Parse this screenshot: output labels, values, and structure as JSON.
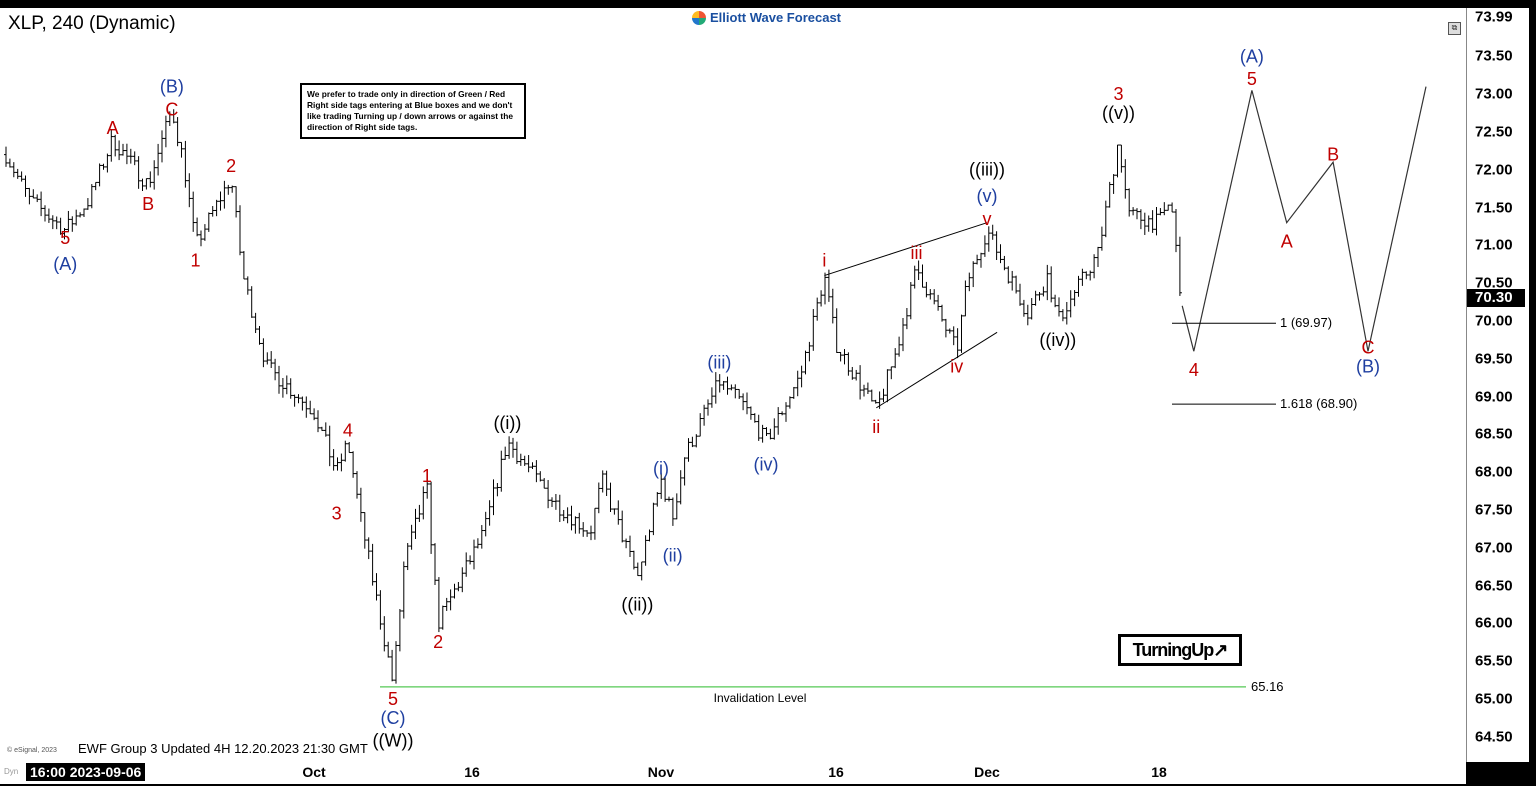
{
  "header": {
    "title": "XLP, 240 (Dynamic)",
    "brand": "Elliott Wave Forecast",
    "note": "We prefer to trade only in direction of Green / Red Right side tags entering at Blue boxes and we don't like trading Turning up / down arrows or against the direction of Right side tags.",
    "turning_up": "TurningUp",
    "turning_up_arrow": "↗",
    "footer": "EWF Group 3 Updated 4H 12.20.2023 21:30 GMT",
    "esignal": "© eSignal, 2023",
    "dyn": "Dyn",
    "corner_icon": "window-restore-icon"
  },
  "chart_data": {
    "type": "ohlc",
    "symbol": "XLP",
    "timeframe": "240",
    "ylim": [
      64.0,
      73.99
    ],
    "yticks": [
      "73.50",
      "73.00",
      "72.50",
      "72.00",
      "71.50",
      "71.00",
      "70.50",
      "70.00",
      "69.50",
      "69.00",
      "68.50",
      "68.00",
      "67.50",
      "67.00",
      "66.50",
      "66.00",
      "65.50",
      "65.00",
      "64.50",
      "64.00"
    ],
    "ytop_label": "73.99",
    "current_price": "70.30",
    "x_cursor_label": "16:00 2023-09-06",
    "xticks": [
      "Oct",
      "16",
      "Nov",
      "16",
      "Dec",
      "18"
    ],
    "price_path": [
      [
        "2023-09-06",
        72.2
      ],
      [
        "2023-09-08",
        71.6
      ],
      [
        "2023-09-11",
        71.2
      ],
      [
        "2023-09-13",
        71.6
      ],
      [
        "2023-09-15",
        72.4
      ],
      [
        "2023-09-18",
        71.8
      ],
      [
        "2023-09-20",
        72.8
      ],
      [
        "2023-09-21",
        72.1
      ],
      [
        "2023-09-22",
        71.0
      ],
      [
        "2023-09-25",
        71.9
      ],
      [
        "2023-09-26",
        70.6
      ],
      [
        "2023-09-28",
        69.4
      ],
      [
        "2023-10-02",
        68.8
      ],
      [
        "2023-10-04",
        68.0
      ],
      [
        "2023-10-05",
        68.4
      ],
      [
        "2023-10-06",
        67.5
      ],
      [
        "2023-10-09",
        65.2
      ],
      [
        "2023-10-10",
        66.8
      ],
      [
        "2023-10-12",
        67.8
      ],
      [
        "2023-10-13",
        66.0
      ],
      [
        "2023-10-17",
        67.2
      ],
      [
        "2023-10-19",
        68.4
      ],
      [
        "2023-10-23",
        67.6
      ],
      [
        "2023-10-26",
        67.2
      ],
      [
        "2023-10-27",
        67.9
      ],
      [
        "2023-10-30",
        66.6
      ],
      [
        "2023-11-01",
        67.9
      ],
      [
        "2023-11-02",
        67.4
      ],
      [
        "2023-11-03",
        68.2
      ],
      [
        "2023-11-06",
        69.2
      ],
      [
        "2023-11-08",
        68.9
      ],
      [
        "2023-11-10",
        68.4
      ],
      [
        "2023-11-13",
        69.3
      ],
      [
        "2023-11-15",
        70.6
      ],
      [
        "2023-11-16",
        69.7
      ],
      [
        "2023-11-20",
        68.8
      ],
      [
        "2023-11-22",
        69.6
      ],
      [
        "2023-11-24",
        70.7
      ],
      [
        "2023-11-28",
        69.6
      ],
      [
        "2023-11-29",
        70.5
      ],
      [
        "2023-12-01",
        71.2
      ],
      [
        "2023-12-05",
        70.1
      ],
      [
        "2023-12-07",
        70.6
      ],
      [
        "2023-12-08",
        70.0
      ],
      [
        "2023-12-12",
        70.9
      ],
      [
        "2023-12-14",
        72.4
      ],
      [
        "2023-12-15",
        71.4
      ],
      [
        "2023-12-18",
        71.3
      ],
      [
        "2023-12-19",
        71.6
      ],
      [
        "2023-12-20",
        70.2
      ]
    ],
    "projection_path": [
      [
        "2023-12-20",
        70.2
      ],
      [
        "2023-12-21",
        69.6
      ],
      [
        "2023-12-26",
        73.05
      ],
      [
        "2023-12-29",
        71.3
      ],
      [
        "2024-01-02",
        72.1
      ],
      [
        "2024-01-05",
        69.6
      ],
      [
        "2024-01-10",
        73.1
      ]
    ],
    "wedge_lines": [
      [
        [
          "2023-11-15",
          70.6
        ],
        [
          "2023-12-01",
          71.3
        ]
      ],
      [
        [
          "2023-11-20",
          68.85
        ],
        [
          "2023-12-02",
          69.85
        ]
      ]
    ],
    "levels": [
      {
        "label": "1 (69.97)",
        "value": 69.97
      },
      {
        "label": "1.618 (68.90)",
        "value": 68.9
      },
      {
        "label": "65.16",
        "value": 65.16,
        "caption": "Invalidation Level"
      }
    ],
    "wave_labels": [
      {
        "text": "5",
        "color": "#c00000",
        "date": "2023-09-11",
        "price": 71.1
      },
      {
        "text": "(A)",
        "color": "#1f3fa0",
        "date": "2023-09-11",
        "price": 70.75
      },
      {
        "text": "A",
        "color": "#c00000",
        "date": "2023-09-15",
        "price": 72.55
      },
      {
        "text": "B",
        "color": "#c00000",
        "date": "2023-09-18",
        "price": 71.55
      },
      {
        "text": "(B)",
        "color": "#1f3fa0",
        "date": "2023-09-20",
        "price": 73.1
      },
      {
        "text": "C",
        "color": "#c00000",
        "date": "2023-09-20",
        "price": 72.8
      },
      {
        "text": "2",
        "color": "#c00000",
        "date": "2023-09-25",
        "price": 72.05
      },
      {
        "text": "1",
        "color": "#c00000",
        "date": "2023-09-22",
        "price": 70.8
      },
      {
        "text": "4",
        "color": "#c00000",
        "date": "2023-10-05",
        "price": 68.55
      },
      {
        "text": "3",
        "color": "#c00000",
        "date": "2023-10-04",
        "price": 67.45
      },
      {
        "text": "1",
        "color": "#c00000",
        "date": "2023-10-12",
        "price": 67.95
      },
      {
        "text": "2",
        "color": "#c00000",
        "date": "2023-10-13",
        "price": 65.75
      },
      {
        "text": "5",
        "color": "#c00000",
        "date": "2023-10-09",
        "price": 65.0
      },
      {
        "text": "(C)",
        "color": "#1f3fa0",
        "date": "2023-10-09",
        "price": 64.75
      },
      {
        "text": "((W))",
        "color": "#000000",
        "date": "2023-10-09",
        "price": 64.45
      },
      {
        "text": "((i))",
        "color": "#000000",
        "date": "2023-10-19",
        "price": 68.65
      },
      {
        "text": "((ii))",
        "color": "#000000",
        "date": "2023-10-30",
        "price": 66.25
      },
      {
        "text": "(i)",
        "color": "#1f3fa0",
        "date": "2023-11-01",
        "price": 68.05
      },
      {
        "text": "(ii)",
        "color": "#1f3fa0",
        "date": "2023-11-02",
        "price": 66.9
      },
      {
        "text": "(iii)",
        "color": "#1f3fa0",
        "date": "2023-11-06",
        "price": 69.45
      },
      {
        "text": "(iv)",
        "color": "#1f3fa0",
        "date": "2023-11-10",
        "price": 68.1
      },
      {
        "text": "i",
        "color": "#c00000",
        "date": "2023-11-15",
        "price": 70.8
      },
      {
        "text": "ii",
        "color": "#c00000",
        "date": "2023-11-20",
        "price": 68.6
      },
      {
        "text": "iii",
        "color": "#c00000",
        "date": "2023-11-24",
        "price": 70.9
      },
      {
        "text": "iv",
        "color": "#c00000",
        "date": "2023-11-28",
        "price": 69.4
      },
      {
        "text": "((iii))",
        "color": "#000000",
        "date": "2023-12-01",
        "price": 72.0
      },
      {
        "text": "(v)",
        "color": "#1f3fa0",
        "date": "2023-12-01",
        "price": 71.65
      },
      {
        "text": "v",
        "color": "#c00000",
        "date": "2023-12-01",
        "price": 71.35
      },
      {
        "text": "((iv))",
        "color": "#000000",
        "date": "2023-12-08",
        "price": 69.75
      },
      {
        "text": "3",
        "color": "#c00000",
        "date": "2023-12-14",
        "price": 73.0
      },
      {
        "text": "((v))",
        "color": "#000000",
        "date": "2023-12-14",
        "price": 72.75
      },
      {
        "text": "4",
        "color": "#c00000",
        "date": "2023-12-21",
        "price": 69.35
      },
      {
        "text": "(A)",
        "color": "#1f3fa0",
        "date": "2023-12-26",
        "price": 73.5
      },
      {
        "text": "5",
        "color": "#c00000",
        "date": "2023-12-26",
        "price": 73.2
      },
      {
        "text": "B",
        "color": "#c00000",
        "date": "2024-01-02",
        "price": 72.2
      },
      {
        "text": "A",
        "color": "#c00000",
        "date": "2023-12-29",
        "price": 71.05
      },
      {
        "text": "C",
        "color": "#c00000",
        "date": "2024-01-05",
        "price": 69.65
      },
      {
        "text": "(B)",
        "color": "#1f3fa0",
        "date": "2024-01-05",
        "price": 69.4
      }
    ]
  }
}
